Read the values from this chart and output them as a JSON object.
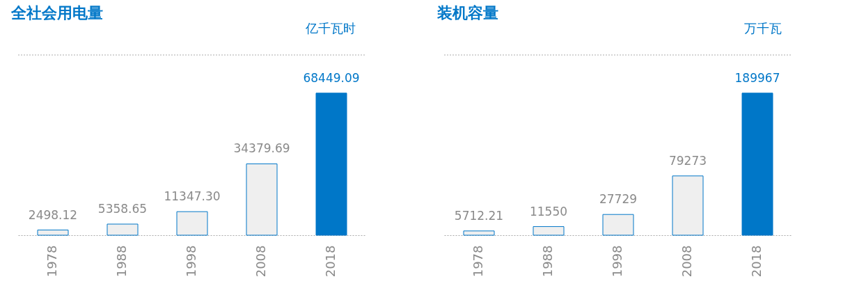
{
  "chart_data": [
    {
      "type": "bar",
      "title": "全社会用电量",
      "ylabel": "亿千瓦时",
      "categories": [
        "1978",
        "1988",
        "1998",
        "2008",
        "2018"
      ],
      "values": [
        2498.12,
        5358.65,
        11347.3,
        34379.69,
        68449.09
      ],
      "value_labels": [
        "2498.12",
        "5358.65",
        "11347.30",
        "34379.69",
        "68449.09"
      ],
      "colors": [
        "#efefef",
        "#efefef",
        "#efefef",
        "#efefef",
        "#0077c8"
      ],
      "grid": false,
      "tick_labels": "x"
    },
    {
      "type": "bar",
      "title": "装机容量",
      "ylabel": "万千瓦",
      "categories": [
        "1978",
        "1988",
        "1998",
        "2008",
        "2018"
      ],
      "values": [
        5712.21,
        11550,
        27729,
        79273,
        189967
      ],
      "value_labels": [
        "5712.21",
        "11550",
        "27729",
        "79273",
        "189967"
      ],
      "colors": [
        "#efefef",
        "#efefef",
        "#efefef",
        "#efefef",
        "#0077c8"
      ],
      "grid": false,
      "tick_labels": "x"
    }
  ]
}
